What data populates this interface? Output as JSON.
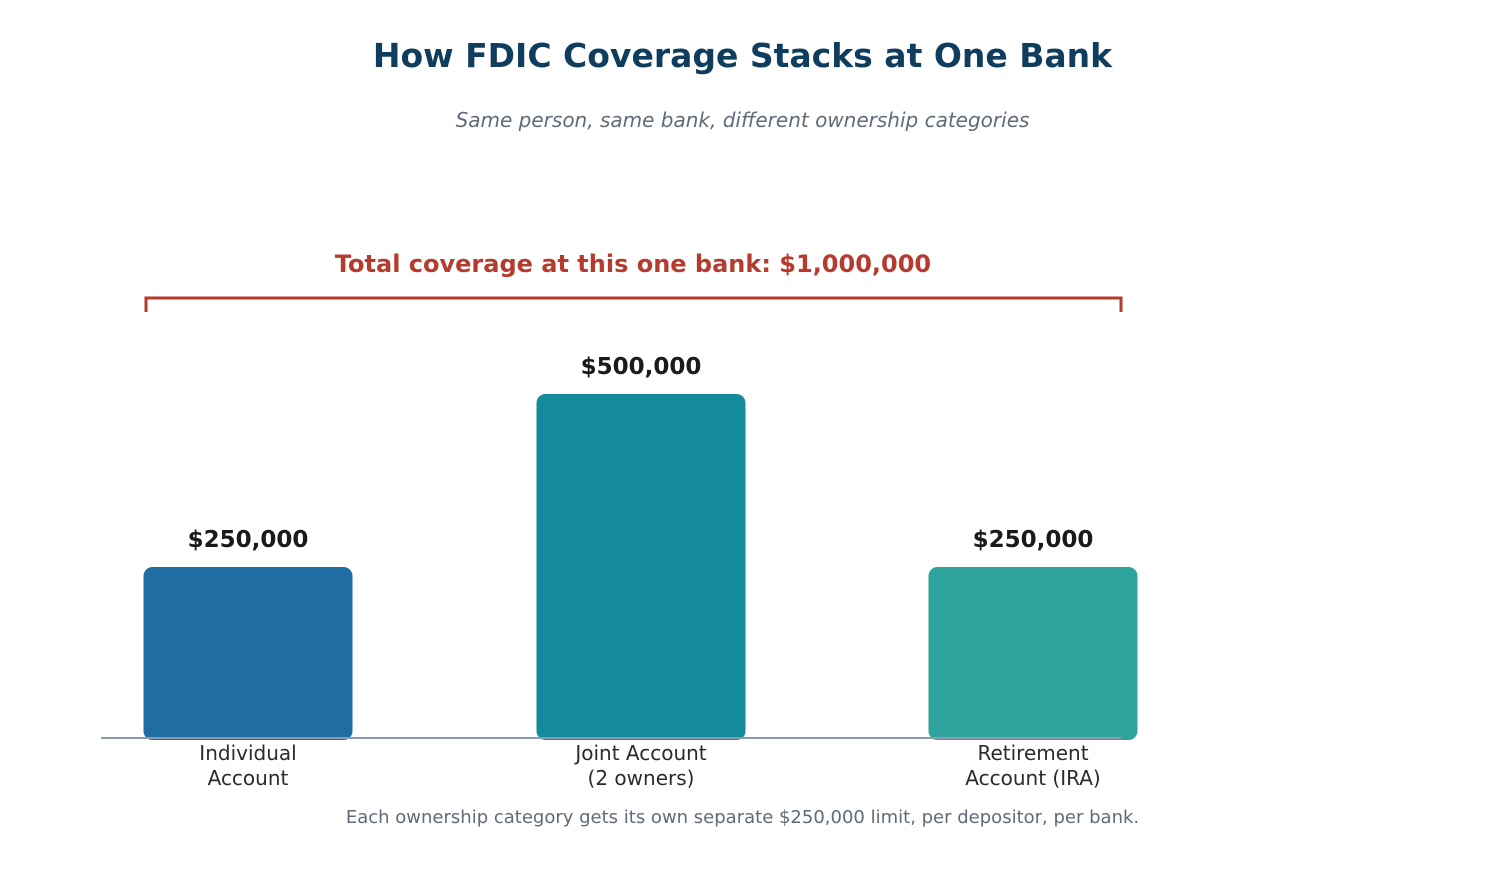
{
  "chart_data": {
    "type": "bar",
    "title": "How FDIC Coverage Stacks at One Bank",
    "subtitle": "Same person, same bank, different ownership categories",
    "categories": [
      [
        "Individual",
        "Account"
      ],
      [
        "Joint Account",
        "(2 owners)"
      ],
      [
        "Retirement",
        "Account (IRA)"
      ]
    ],
    "values": [
      250000,
      500000,
      250000
    ],
    "value_labels": [
      "$250,000",
      "$500,000",
      "$250,000"
    ],
    "colors": [
      "#1f6da3",
      "#148a9e",
      "#2ea39d"
    ],
    "ylim": [
      0,
      500000
    ],
    "grid": false,
    "legend": "none",
    "annotation": {
      "text": "Total coverage at this one bank: $1,000,000",
      "color": "#b53b2e"
    },
    "footnote": "Each ownership category gets its own separate $250,000 limit, per depositor, per bank."
  }
}
